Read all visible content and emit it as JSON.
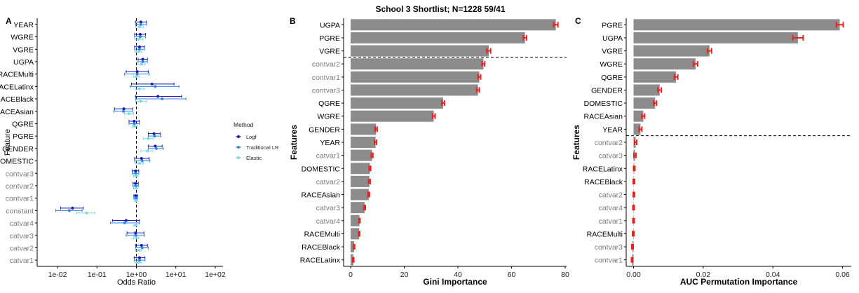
{
  "figure": {
    "title": "School 3 Shortlist; N=1228 59/41",
    "panel_letters": [
      "A",
      "B",
      "C"
    ]
  },
  "colors": {
    "bar": "#8c8c8c",
    "error": "#e8201f",
    "axis": "#000000",
    "grey_label": "#7a7a7a",
    "black_label": "#000000",
    "logf": "#1a1ab0",
    "traditional_lr": "#2e86e0",
    "elastic": "#7fd6ea"
  },
  "chart_data": [
    {
      "panel": "A",
      "type": "scatter",
      "xlabel": "Odds Ratio",
      "ylabel": "Feature",
      "xscale": "log10",
      "xlim": [
        0.01,
        100
      ],
      "x_tick_labels": [
        "1e-02",
        "1e-01",
        "1e+00",
        "1e+01",
        "1e+02"
      ],
      "x_tick_values": [
        0.01,
        0.1,
        1,
        10,
        100
      ],
      "reference_line": 1,
      "grid": false,
      "legend": {
        "title": "Method",
        "position": "right",
        "items": [
          "Logf",
          "Traditional LR",
          "Elastic"
        ]
      },
      "features": [
        "YEAR",
        "WGRE",
        "VGRE",
        "UGPA",
        "RACEMulti",
        "RACELatinx",
        "RACEBlack",
        "RACEAsian",
        "QGRE",
        "PGRE",
        "GENDER",
        "DOMESTIC",
        "contvar3",
        "contvar2",
        "contvar1",
        "constant",
        "catvar4",
        "catvar3",
        "catvar2",
        "catvar1"
      ],
      "feature_label_grey": [
        false,
        false,
        false,
        false,
        false,
        false,
        false,
        false,
        false,
        false,
        false,
        false,
        true,
        true,
        true,
        true,
        true,
        true,
        true,
        true
      ],
      "series": [
        {
          "name": "Logf",
          "est": [
            1.3,
            1.25,
            1.2,
            1.45,
            1.05,
            2.5,
            3.5,
            0.48,
            0.88,
            2.8,
            3.0,
            1.35,
            0.95,
            0.95,
            0.96,
            0.024,
            0.55,
            0.95,
            1.35,
            1.2
          ],
          "lo": [
            0.95,
            0.9,
            0.9,
            1.1,
            0.55,
            0.75,
            0.95,
            0.28,
            0.65,
            2.0,
            2.0,
            0.9,
            0.78,
            0.82,
            0.86,
            0.012,
            0.25,
            0.58,
            0.95,
            0.88
          ],
          "hi": [
            1.8,
            1.7,
            1.6,
            1.9,
            2.0,
            9.0,
            14,
            0.8,
            1.2,
            4.0,
            4.5,
            2.1,
            1.15,
            1.12,
            1.08,
            0.045,
            1.2,
            1.55,
            1.9,
            1.65
          ]
        },
        {
          "name": "Traditional LR",
          "est": [
            1.3,
            1.25,
            1.2,
            1.45,
            1.05,
            3.0,
            4.5,
            0.47,
            0.88,
            2.9,
            3.2,
            1.4,
            0.95,
            0.95,
            0.96,
            0.02,
            0.5,
            0.95,
            1.4,
            1.2
          ],
          "lo": [
            0.95,
            0.9,
            0.9,
            1.1,
            0.5,
            0.7,
            0.95,
            0.27,
            0.65,
            2.0,
            2.0,
            0.9,
            0.78,
            0.82,
            0.86,
            0.009,
            0.22,
            0.55,
            0.95,
            0.88
          ],
          "hi": [
            1.8,
            1.7,
            1.6,
            1.9,
            2.1,
            12,
            18,
            0.8,
            1.2,
            4.2,
            4.8,
            2.2,
            1.15,
            1.12,
            1.08,
            0.042,
            1.2,
            1.6,
            2.0,
            1.65
          ]
        },
        {
          "name": "Elastic",
          "est": [
            1.2,
            1.15,
            1.15,
            1.35,
            1.0,
            1.2,
            1.3,
            0.65,
            0.9,
            2.0,
            1.9,
            1.2,
            0.97,
            0.97,
            0.98,
            0.055,
            0.95,
            1.0,
            1.15,
            1.1
          ],
          "lo": [
            0.95,
            0.92,
            0.92,
            1.1,
            0.85,
            0.95,
            0.95,
            0.5,
            0.78,
            1.5,
            1.3,
            0.95,
            0.85,
            0.85,
            0.9,
            0.03,
            0.85,
            0.85,
            0.95,
            0.92
          ],
          "hi": [
            1.5,
            1.45,
            1.4,
            1.65,
            1.2,
            1.6,
            1.8,
            0.85,
            1.05,
            2.6,
            2.6,
            1.5,
            1.1,
            1.08,
            1.06,
            0.09,
            1.05,
            1.15,
            1.35,
            1.3
          ]
        }
      ]
    },
    {
      "panel": "B",
      "type": "bar",
      "orientation": "horizontal",
      "xlabel": "Gini Importance",
      "ylabel": "Features",
      "xlim": [
        0,
        80
      ],
      "x_tick_values": [
        0,
        20,
        40,
        60,
        80
      ],
      "x_tick_labels": [
        "0",
        "20",
        "40",
        "60",
        "80"
      ],
      "grid": false,
      "cutoff_after_index": 2,
      "categories": [
        "UGPA",
        "PGRE",
        "VGRE",
        "contvar2",
        "contvar1",
        "contvar3",
        "QGRE",
        "WGRE",
        "GENDER",
        "YEAR",
        "catvar1",
        "DOMESTIC",
        "catvar2",
        "RACEAsian",
        "catvar3",
        "catvar4",
        "RACEMulti",
        "RACEBlack",
        "RACELatinx"
      ],
      "category_grey": [
        false,
        false,
        false,
        true,
        true,
        true,
        false,
        false,
        false,
        false,
        true,
        false,
        true,
        false,
        true,
        true,
        false,
        false,
        false
      ],
      "values": [
        76.5,
        65.0,
        51.5,
        49.5,
        48.0,
        47.5,
        34.5,
        31.0,
        9.5,
        9.3,
        8.0,
        7.2,
        7.0,
        6.8,
        5.2,
        3.3,
        3.2,
        1.3,
        1.0
      ],
      "error": [
        0.8,
        0.6,
        0.7,
        0.5,
        0.5,
        0.5,
        0.5,
        0.5,
        0.4,
        0.4,
        0.3,
        0.3,
        0.3,
        0.3,
        0.3,
        0.2,
        0.2,
        0.2,
        0.2
      ]
    },
    {
      "panel": "C",
      "type": "bar",
      "orientation": "horizontal",
      "xlabel": "AUC Permutation Importance",
      "ylabel": "Features",
      "xlim": [
        -0.0005,
        0.0615
      ],
      "x_tick_values": [
        0.0,
        0.02,
        0.04,
        0.06
      ],
      "x_tick_labels": [
        "0.00",
        "0.02",
        "0.04",
        "0.06"
      ],
      "grid": false,
      "cutoff_after_index": 8,
      "categories": [
        "PGRE",
        "UGPA",
        "VGRE",
        "WGRE",
        "QGRE",
        "GENDER",
        "DOMESTIC",
        "RACEAsian",
        "YEAR",
        "contvar2",
        "catvar3",
        "RACELatinx",
        "RACEBlack",
        "catvar2",
        "catvar4",
        "catvar1",
        "RACEMulti",
        "contvar3",
        "contvar1"
      ],
      "category_grey": [
        false,
        false,
        false,
        false,
        false,
        false,
        false,
        false,
        false,
        true,
        true,
        false,
        false,
        true,
        true,
        true,
        false,
        true,
        true
      ],
      "values": [
        0.0592,
        0.0472,
        0.0218,
        0.0178,
        0.0122,
        0.0075,
        0.0062,
        0.0028,
        0.002,
        0.0006,
        0.0004,
        0.0002,
        0.0001,
        0.0001,
        0.0,
        0.0,
        -0.0001,
        -0.0003,
        -0.0004
      ],
      "error": [
        0.001,
        0.0015,
        0.0006,
        0.0006,
        0.0005,
        0.0005,
        0.0004,
        0.0004,
        0.0004,
        0.0003,
        0.0003,
        0.0002,
        0.0002,
        0.0002,
        0.0002,
        0.0002,
        0.0002,
        0.0002,
        0.0002
      ]
    }
  ]
}
